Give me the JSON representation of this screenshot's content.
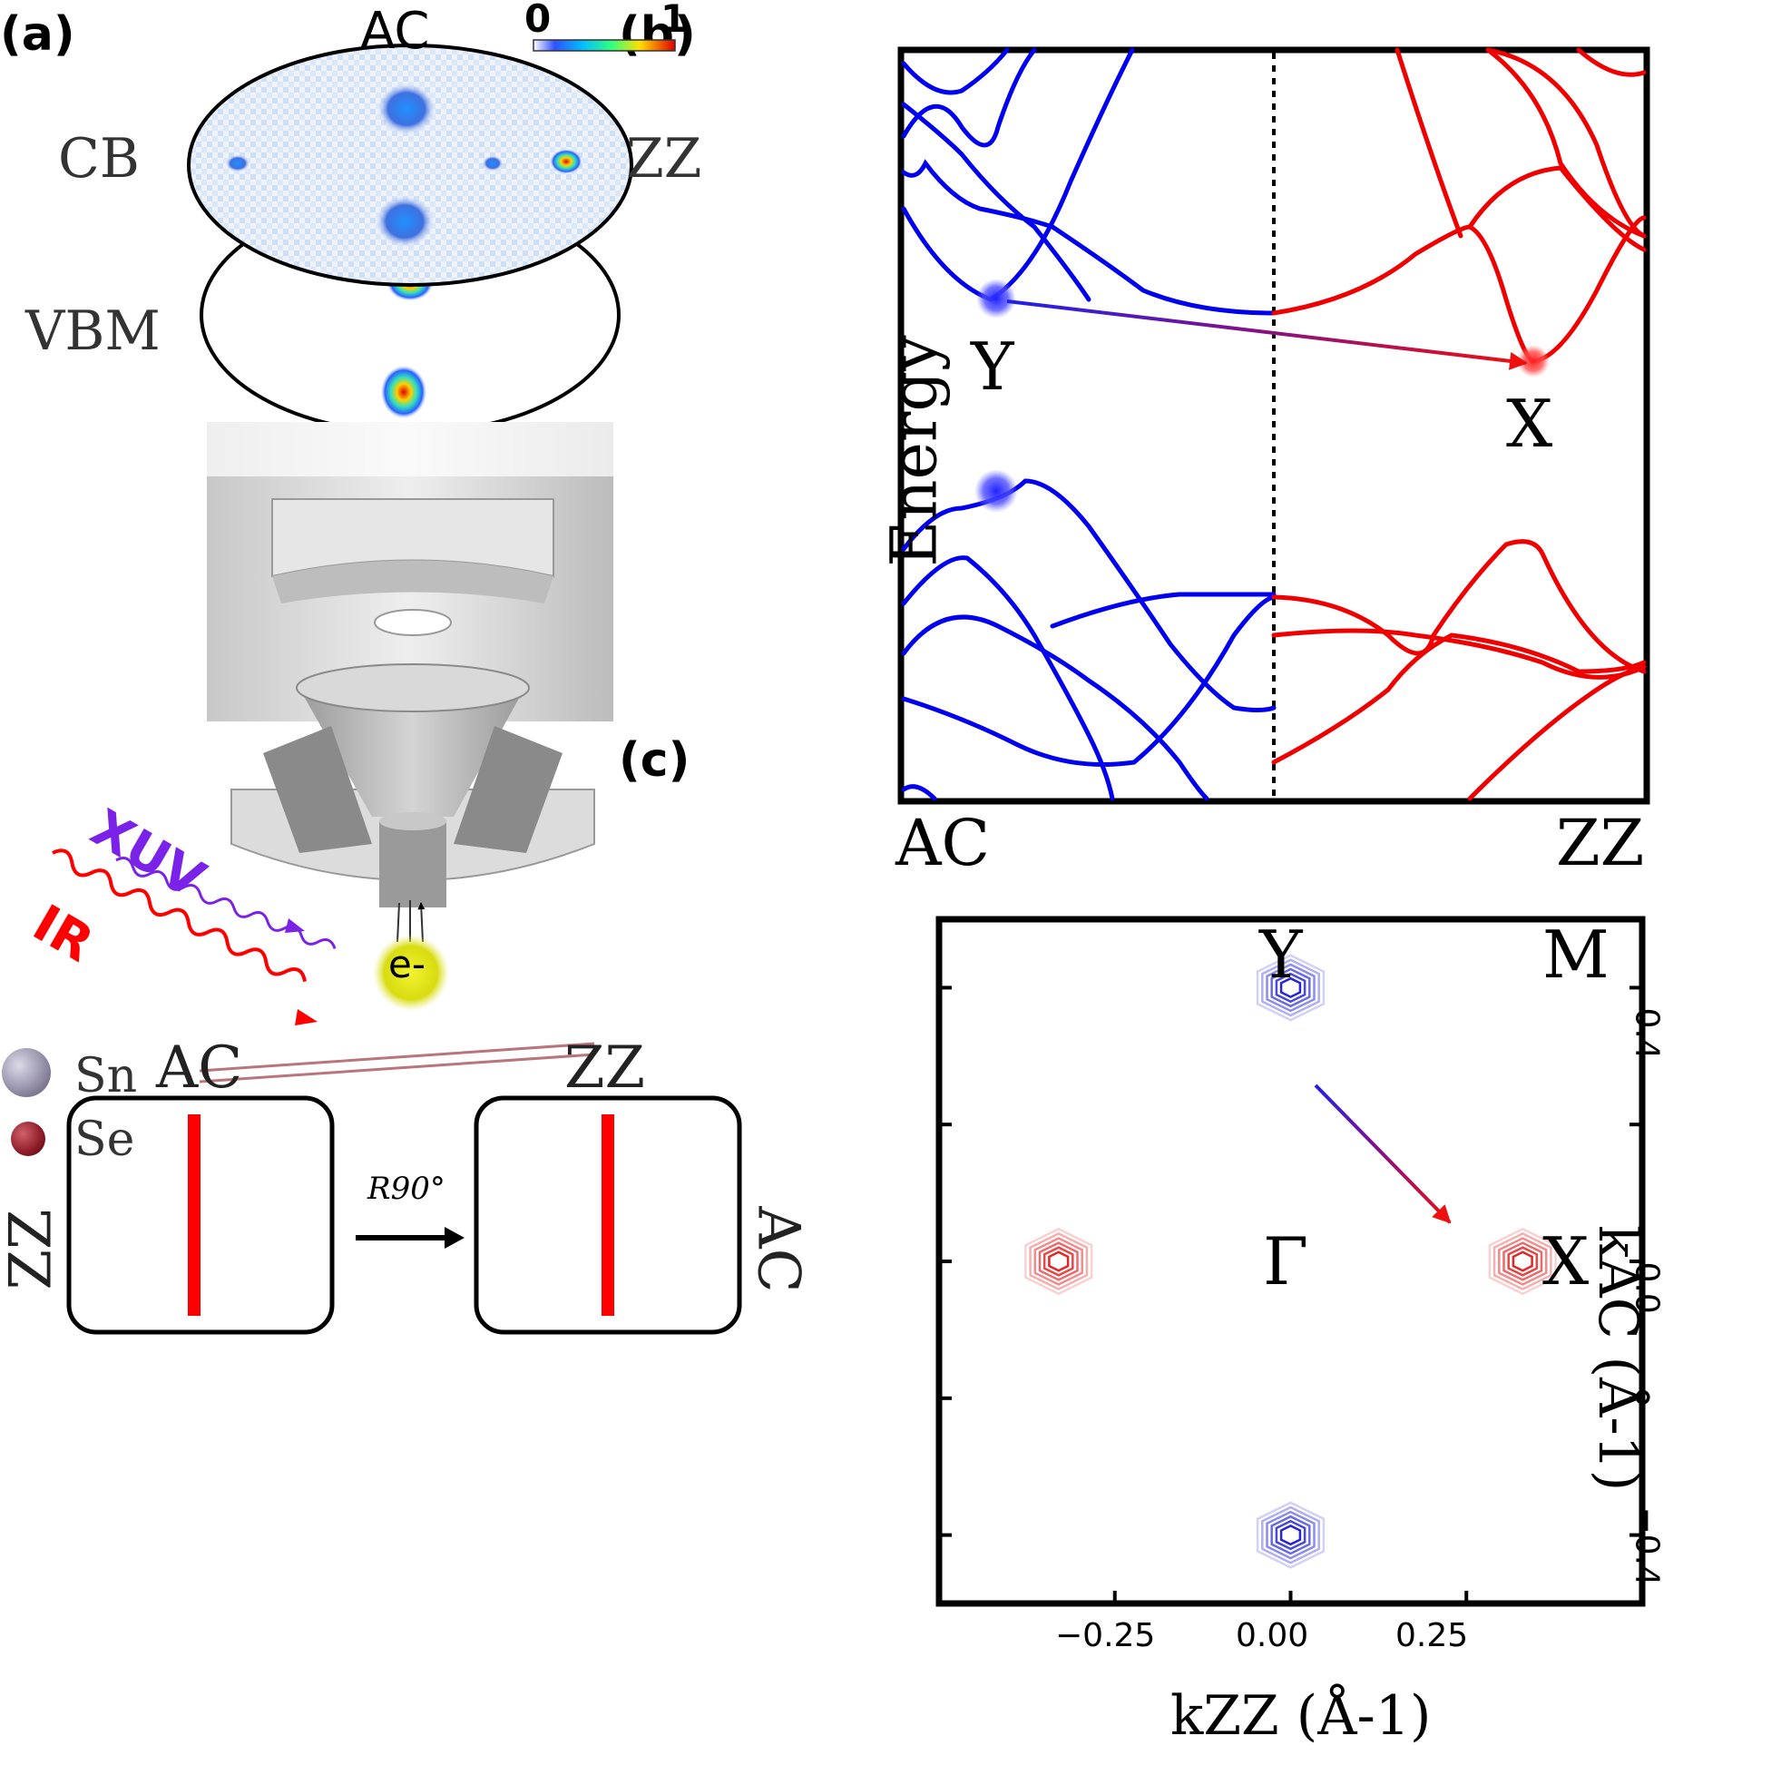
{
  "panels": {
    "a": "(a)",
    "b": "(b)",
    "c": "(c)"
  },
  "panel_a": {
    "colorbar": {
      "min": "0",
      "max": "1"
    },
    "cb_label": "CB",
    "vbm_label": "VBM",
    "ac_label": "AC",
    "zz_label": "ZZ",
    "xuv_label": "XUV",
    "ir_label": "IR",
    "electron_label": "e-",
    "legend": {
      "sn": "Sn",
      "se": "Se"
    },
    "bottom": {
      "left_top": "AC",
      "left_side": "ZZ",
      "right_top": "ZZ",
      "right_side": "AC",
      "rotation": "R90°"
    },
    "colors": {
      "sn": "#8f8aa3",
      "se": "#8b1a26",
      "ir": "#ff0000",
      "xuv": "#7b22e8"
    }
  },
  "chart_data": [
    {
      "id": "b",
      "type": "line",
      "title": "",
      "ylabel": "Energy",
      "xticks": [
        "AC",
        "ZZ"
      ],
      "points": {
        "Y": "Y",
        "X": "X"
      },
      "series": [
        {
          "color": "#0000ee"
        },
        {
          "color": "#ee0000"
        }
      ]
    },
    {
      "id": "c",
      "type": "scatter",
      "xlabel": "kZZ (Å-1)",
      "ylabel": "kAC (Å-1)",
      "xlim": [
        -0.5,
        0.5
      ],
      "ylim": [
        -0.5,
        0.5
      ],
      "xticks": [
        "−0.25",
        "0.00",
        "0.25"
      ],
      "xtick_values": [
        -0.25,
        0.0,
        0.25
      ],
      "yticks": [
        "0.4",
        "0.0",
        "−0.4"
      ],
      "ytick_values": [
        0.4,
        0.0,
        -0.4
      ],
      "labels": {
        "Y": "Y",
        "M": "M",
        "X": "X",
        "Gamma": "Γ"
      },
      "valleys": [
        {
          "name": "Y",
          "x": 0.0,
          "y": 0.4,
          "color": "#1a1ad6"
        },
        {
          "name": "-Y",
          "x": 0.0,
          "y": -0.4,
          "color": "#1a1ad6"
        },
        {
          "name": "X",
          "x": 0.33,
          "y": 0.0,
          "color": "#e01a1a"
        },
        {
          "name": "-X",
          "x": -0.33,
          "y": 0.0,
          "color": "#e01a1a"
        }
      ]
    }
  ]
}
